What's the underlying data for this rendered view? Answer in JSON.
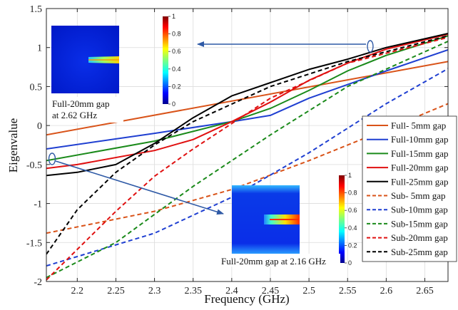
{
  "chart_data": {
    "type": "line",
    "title": "",
    "xlabel": "Frequency (GHz)",
    "ylabel": "Eigenvalue",
    "xlim": [
      2.16,
      2.68
    ],
    "ylim": [
      -2,
      1.5
    ],
    "xticks": [
      "2.2",
      "2.25",
      "2.3",
      "2.35",
      "2.4",
      "2.45",
      "2.5",
      "2.55",
      "2.6",
      "2.65"
    ],
    "yticks": [
      "-2",
      "-1.5",
      "-1",
      "-0.5",
      "0",
      "0.5",
      "1",
      "1.5"
    ],
    "grid": true,
    "legend_position": "right",
    "series": [
      {
        "name": "Full- 5mm gap",
        "color": "#d95319",
        "dash": "solid",
        "x": [
          2.16,
          2.68
        ],
        "y": [
          -0.12,
          0.82
        ]
      },
      {
        "name": "Full-10mm gap",
        "color": "#1f3fd1",
        "dash": "solid",
        "x": [
          2.16,
          2.3,
          2.4,
          2.45,
          2.5,
          2.6,
          2.68
        ],
        "y": [
          -0.3,
          -0.1,
          0.05,
          0.13,
          0.35,
          0.7,
          0.97
        ]
      },
      {
        "name": "Full-15mm gap",
        "color": "#1a8a1a",
        "dash": "solid",
        "x": [
          2.16,
          2.3,
          2.4,
          2.45,
          2.5,
          2.55,
          2.6,
          2.68
        ],
        "y": [
          -0.45,
          -0.2,
          0.05,
          0.22,
          0.45,
          0.7,
          0.9,
          1.15
        ]
      },
      {
        "name": "Full-20mm gap",
        "color": "#e01010",
        "dash": "solid",
        "x": [
          2.16,
          2.2,
          2.3,
          2.35,
          2.4,
          2.45,
          2.5,
          2.55,
          2.6,
          2.68
        ],
        "y": [
          -0.55,
          -0.5,
          -0.32,
          -0.18,
          0.05,
          0.3,
          0.58,
          0.8,
          0.98,
          1.17
        ]
      },
      {
        "name": "Full-25mm gap",
        "color": "#000000",
        "dash": "solid",
        "x": [
          2.16,
          2.2,
          2.25,
          2.3,
          2.35,
          2.4,
          2.45,
          2.5,
          2.55,
          2.6,
          2.68
        ],
        "y": [
          -0.64,
          -0.6,
          -0.5,
          -0.23,
          0.1,
          0.38,
          0.55,
          0.72,
          0.85,
          1.0,
          1.18
        ]
      },
      {
        "name": "Sub- 5mm gap",
        "color": "#d95319",
        "dash": "dash",
        "x": [
          2.16,
          2.3,
          2.4,
          2.5,
          2.6,
          2.68
        ],
        "y": [
          -1.38,
          -1.1,
          -0.82,
          -0.45,
          -0.05,
          0.28
        ]
      },
      {
        "name": "Sub-10mm gap",
        "color": "#1f3fd1",
        "dash": "dash",
        "x": [
          2.16,
          2.3,
          2.4,
          2.5,
          2.6,
          2.68
        ],
        "y": [
          -1.8,
          -1.38,
          -0.92,
          -0.35,
          0.28,
          0.73
        ]
      },
      {
        "name": "Sub-15mm gap",
        "color": "#1a8a1a",
        "dash": "dash",
        "x": [
          2.16,
          2.25,
          2.35,
          2.45,
          2.55,
          2.68
        ],
        "y": [
          -1.95,
          -1.5,
          -0.78,
          -0.12,
          0.5,
          1.08
        ]
      },
      {
        "name": "Sub-20mm gap",
        "color": "#e01010",
        "dash": "dash",
        "x": [
          2.16,
          2.25,
          2.3,
          2.35,
          2.45,
          2.55,
          2.68
        ],
        "y": [
          -1.98,
          -1.1,
          -0.65,
          -0.3,
          0.35,
          0.8,
          1.13
        ]
      },
      {
        "name": "Sub-25mm gap",
        "color": "#000000",
        "dash": "dash",
        "x": [
          2.16,
          2.2,
          2.25,
          2.3,
          2.35,
          2.45,
          2.55,
          2.68
        ],
        "y": [
          -1.65,
          -1.08,
          -0.6,
          -0.25,
          0.05,
          0.5,
          0.82,
          1.15
        ]
      }
    ],
    "annotations": [
      {
        "text_lines": [
          "Full-20mm gap",
          "at 2.62 GHz"
        ],
        "target": {
          "x": 2.615,
          "y": 1.0
        }
      },
      {
        "text_lines": [
          "Full-20mm gap at 2.16 GHz"
        ],
        "target": {
          "x": 2.168,
          "y": -0.52
        }
      }
    ],
    "colorbar_ticks": [
      "0",
      "0.2",
      "0.4",
      "0.6",
      "0.8",
      "1"
    ],
    "colors": {
      "arrow": "#2f5aa6",
      "axis": "#262626",
      "grid": "#dcdcdc"
    }
  }
}
